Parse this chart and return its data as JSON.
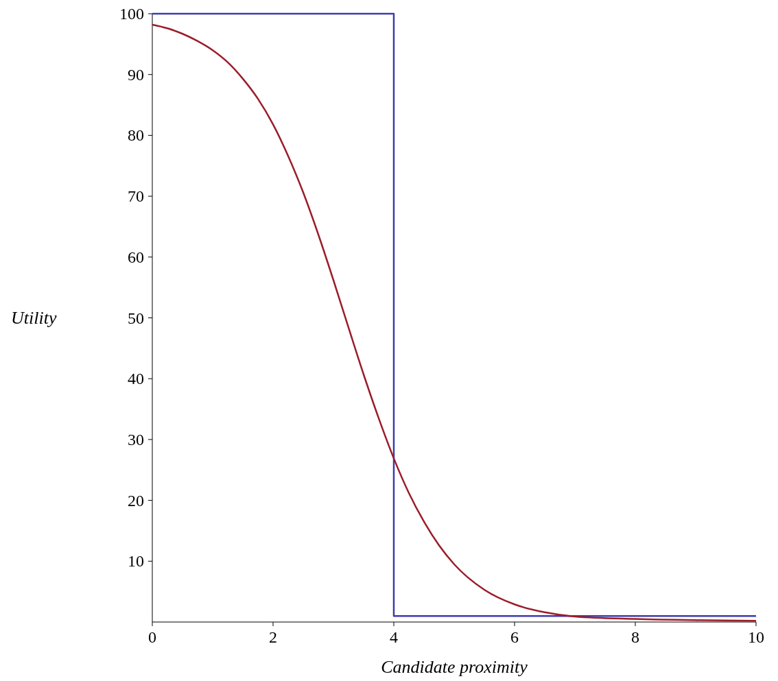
{
  "chart_data": {
    "type": "line",
    "xlabel": "Candidate proximity",
    "ylabel": "Utility",
    "xlim": [
      0,
      10
    ],
    "ylim": [
      0,
      100
    ],
    "xticks": [
      0,
      2,
      4,
      6,
      8,
      10
    ],
    "yticks": [
      10,
      20,
      30,
      40,
      50,
      60,
      70,
      80,
      90,
      100
    ],
    "line_style": "solid",
    "series": [
      {
        "color": "#3c3cae",
        "x": [
          0,
          4,
          4,
          10
        ],
        "values": [
          100,
          100,
          1,
          1
        ]
      },
      {
        "color": "#9b1c2a",
        "x": [
          0,
          0.25,
          0.5,
          0.75,
          1,
          1.25,
          1.5,
          1.75,
          2,
          2.25,
          2.5,
          2.75,
          3,
          3.25,
          3.5,
          3.75,
          4,
          4.25,
          4.5,
          4.75,
          5,
          5.5,
          6,
          6.5,
          7,
          8,
          9,
          10
        ],
        "values": [
          98.2,
          97.6,
          96.7,
          95.5,
          94.0,
          92.0,
          89.3,
          86.0,
          81.8,
          76.6,
          70.6,
          63.7,
          56.2,
          48.4,
          40.7,
          33.5,
          26.9,
          21.2,
          16.5,
          12.6,
          9.5,
          5.3,
          2.9,
          1.6,
          0.9,
          0.5,
          0.3,
          0.2
        ]
      }
    ]
  }
}
